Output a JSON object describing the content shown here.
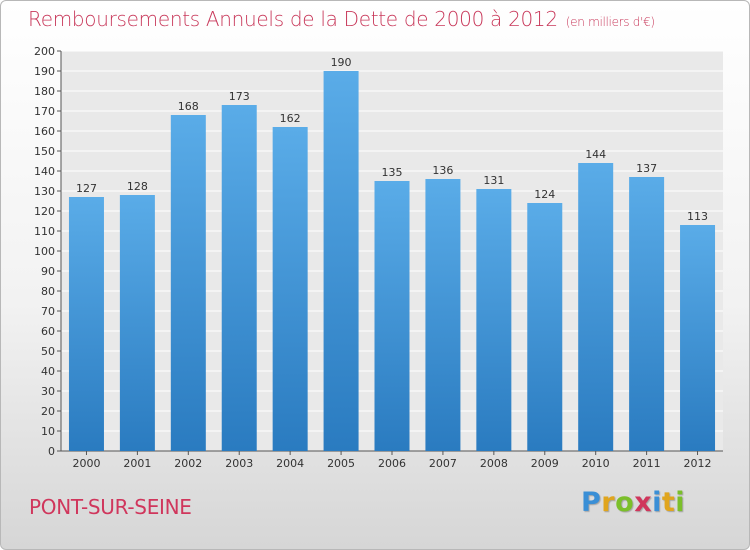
{
  "title": {
    "main": "Remboursements Annuels de la Dette de 2000 à 2012",
    "unit": "(en milliers d'€)"
  },
  "footer": {
    "city": "PONT-SUR-SEINE",
    "logo_letters": [
      "P",
      "r",
      "o",
      "x",
      "i",
      "t",
      "i"
    ],
    "logo_colors": [
      "#3a8fd6",
      "#e0a51e",
      "#7bbf2a",
      "#d0365c",
      "#3a8fd6",
      "#e0a51e",
      "#7bbf2a"
    ]
  },
  "colors": {
    "bar_top": "#5aace8",
    "bar_bottom": "#2a7bc0",
    "title": "#c8385a"
  },
  "chart_data": {
    "type": "bar",
    "categories": [
      "2000",
      "2001",
      "2002",
      "2003",
      "2004",
      "2005",
      "2006",
      "2007",
      "2008",
      "2009",
      "2010",
      "2011",
      "2012"
    ],
    "values": [
      127,
      128,
      168,
      173,
      162,
      190,
      135,
      136,
      131,
      124,
      144,
      137,
      113
    ],
    "ylim": [
      0,
      200
    ],
    "ytick_step": 10,
    "grid": true,
    "data_labels": true
  }
}
